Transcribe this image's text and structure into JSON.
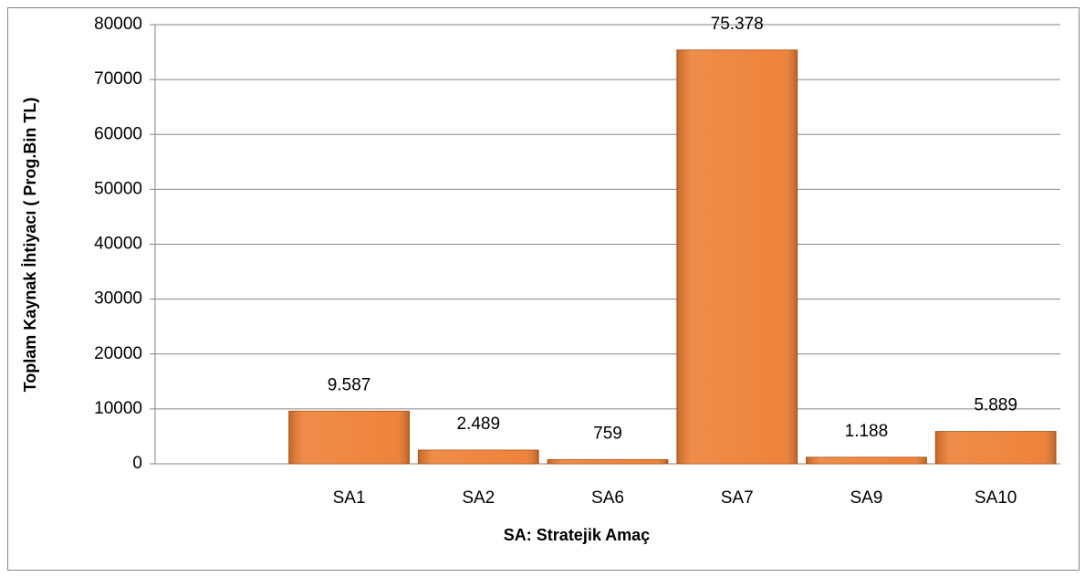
{
  "chart_data": {
    "type": "bar",
    "x_label": "SA: Stratejik Amaç",
    "y_label": "Toplam Kaynak İhtiyacı ( Prog.Bin TL)",
    "categories": [
      null,
      "SA1",
      "SA2",
      "SA6",
      "SA7",
      "SA9",
      "SA10"
    ],
    "values": [
      null,
      9587,
      2489,
      759,
      75378,
      1188,
      5889
    ],
    "value_labels": [
      null,
      "9.587",
      "2.489",
      "759",
      "75.378",
      "1.188",
      "5.889"
    ],
    "color": "#ed7d31",
    "ylim": [
      0,
      80000
    ],
    "yticks": [
      0,
      10000,
      20000,
      30000,
      40000,
      50000,
      60000,
      70000,
      80000
    ],
    "grid": true
  }
}
